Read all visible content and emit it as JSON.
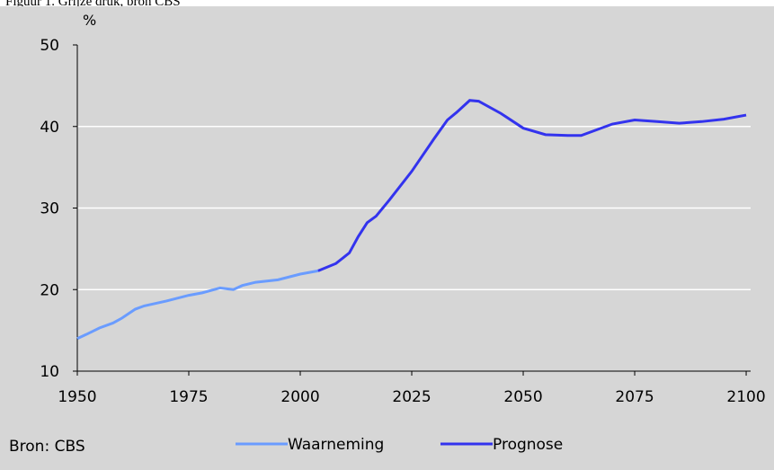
{
  "chart_data": {
    "type": "line",
    "title": "Figuur 1. Grijze druk, bron CBS",
    "y_label": "%",
    "source": "Bron: CBS",
    "xlim": [
      1950,
      2101
    ],
    "xticks": [
      1950,
      1975,
      2000,
      2025,
      2050,
      2075,
      2100
    ],
    "ylim": [
      10,
      50
    ],
    "yticks": [
      10,
      20,
      30,
      40,
      50
    ],
    "grid": true,
    "series": [
      {
        "name": "Waarneming",
        "color": "#6a9cff",
        "x": [
          1950,
          1952,
          1955,
          1958,
          1960,
          1963,
          1965,
          1970,
          1975,
          1978,
          1980,
          1982,
          1985,
          1987,
          1990,
          1995,
          2000,
          2004
        ],
        "values": [
          14.0,
          14.5,
          15.3,
          15.9,
          16.5,
          17.6,
          18.0,
          18.6,
          19.3,
          19.6,
          19.9,
          20.2,
          20.0,
          20.5,
          20.9,
          21.2,
          21.9,
          22.3
        ]
      },
      {
        "name": "Prognose",
        "color": "#3333ee",
        "x": [
          2004,
          2008,
          2011,
          2013,
          2015,
          2017,
          2020,
          2025,
          2030,
          2033,
          2035,
          2038,
          2040,
          2045,
          2050,
          2055,
          2060,
          2063,
          2070,
          2075,
          2080,
          2085,
          2090,
          2095,
          2100
        ],
        "values": [
          22.3,
          23.2,
          24.5,
          26.5,
          28.2,
          29.0,
          31.0,
          34.5,
          38.5,
          40.8,
          41.7,
          43.2,
          43.1,
          41.6,
          39.8,
          39.0,
          38.9,
          38.9,
          40.3,
          40.8,
          40.6,
          40.4,
          40.6,
          40.9,
          41.4
        ]
      }
    ]
  }
}
